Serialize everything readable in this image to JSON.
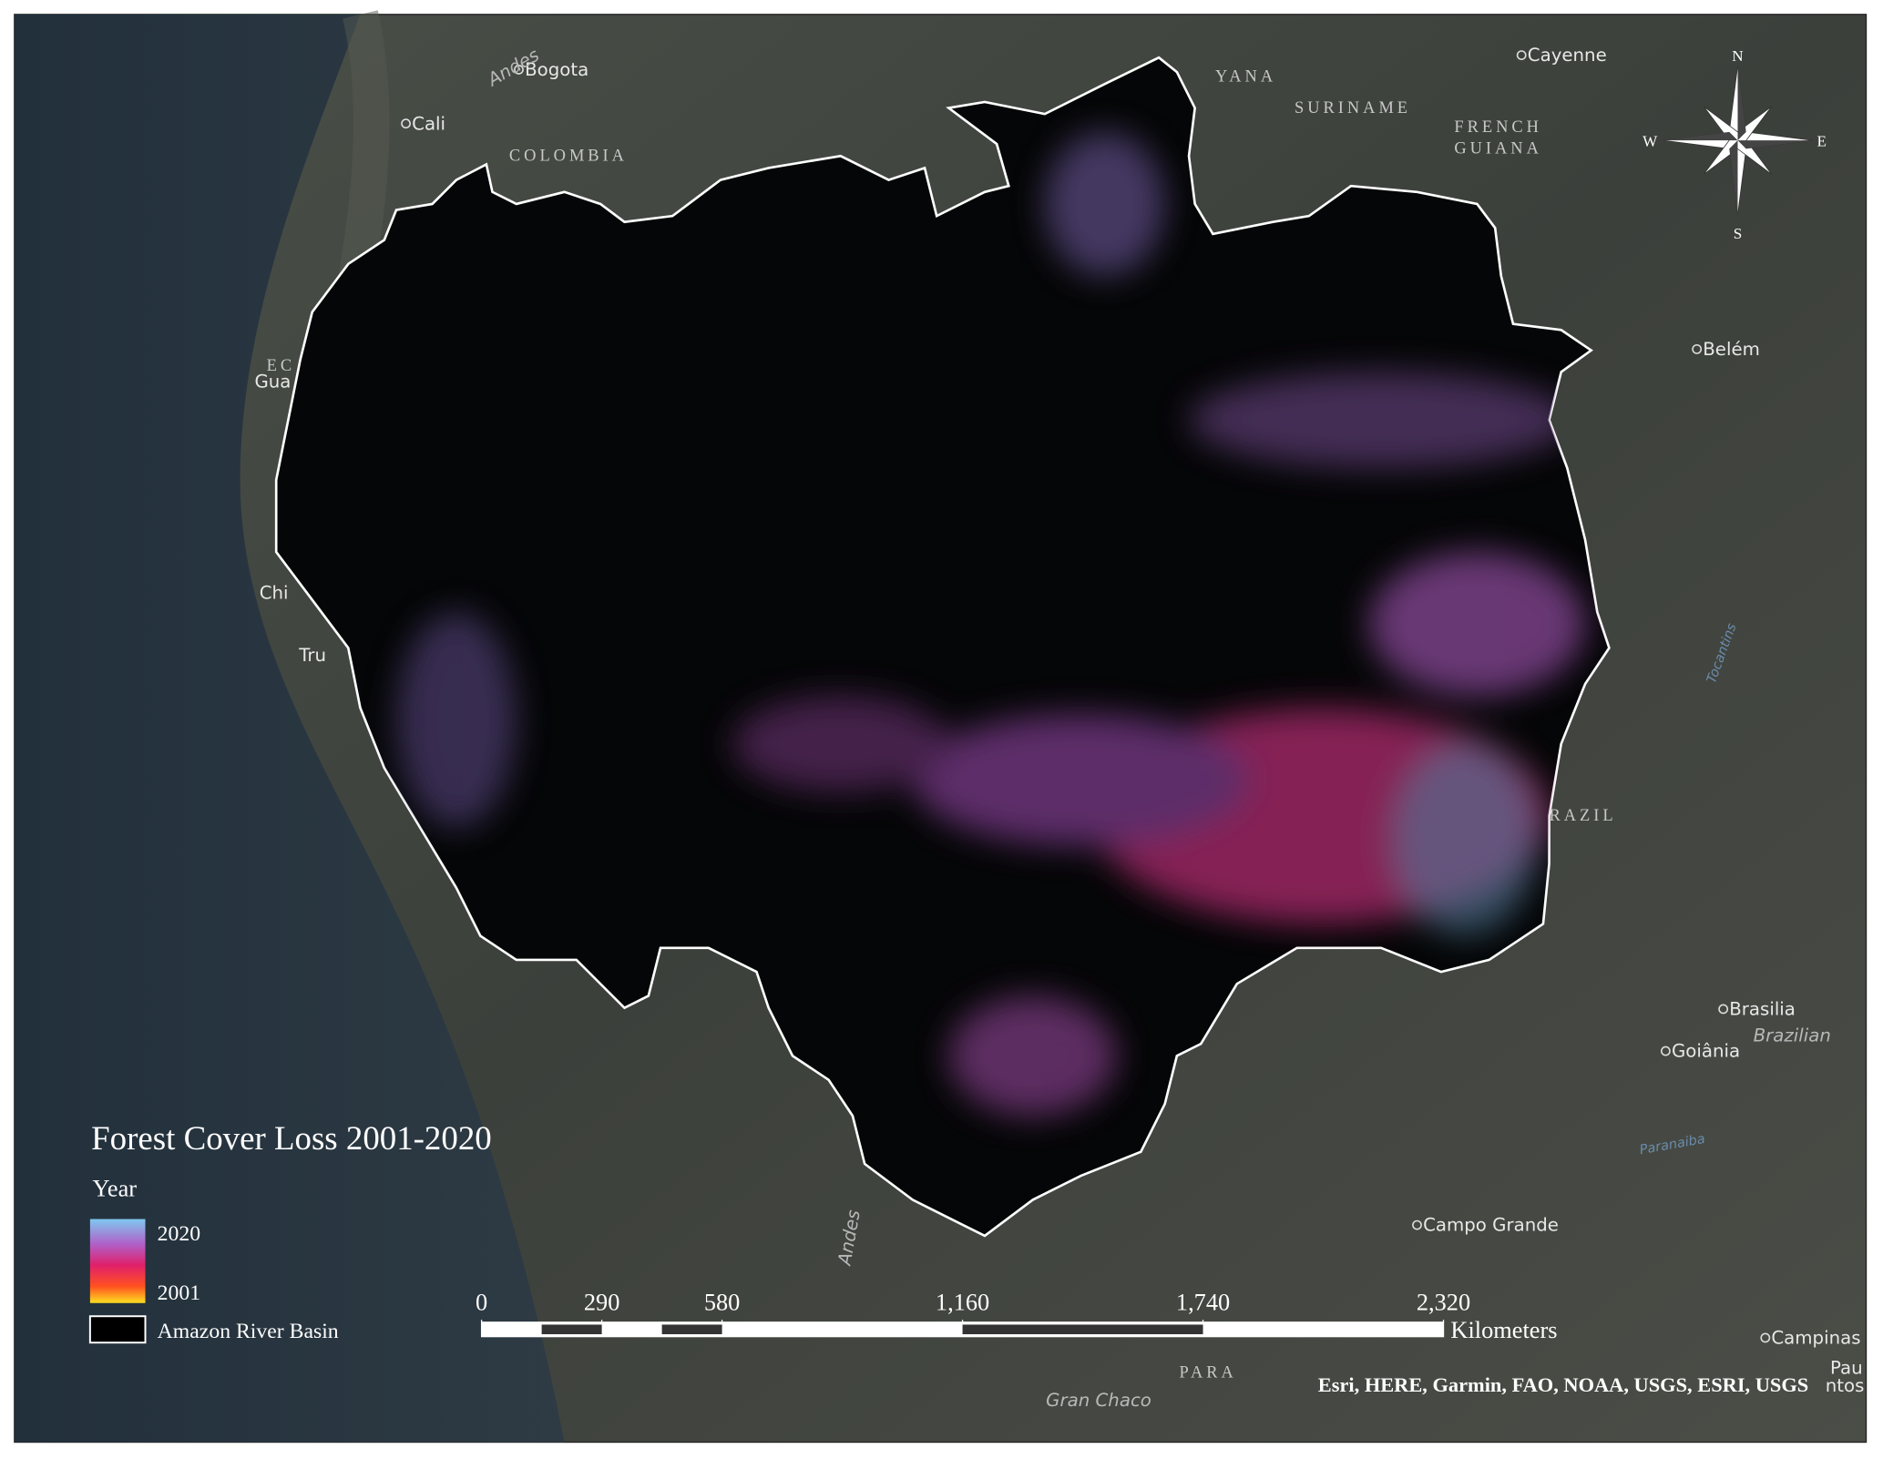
{
  "map": {
    "labels": {
      "cities": [
        "Bogota",
        "Cali",
        "Cayenne",
        "Belém",
        "Brasilia",
        "Goiânia",
        "Campo Grande",
        "Campinas",
        "Gua",
        "Chi",
        "Tru",
        "Pau",
        "ntos"
      ],
      "countries": [
        "COLOMBIA",
        "YANA",
        "SURINAME",
        "FRENCH",
        "GUIANA",
        "RAZIL",
        "PARA",
        "EC"
      ],
      "features": [
        "Andes",
        "Andes",
        "Gran Chaco",
        "Brazilian"
      ],
      "water": [
        "Tocantins",
        "Paranaiba"
      ]
    },
    "compass": {
      "n": "N",
      "e": "E",
      "s": "S",
      "w": "W"
    },
    "legend": {
      "title": "Forest Cover Loss 2001-2020",
      "subtitle": "Year",
      "high": "2020",
      "low": "2001",
      "outline": "Amazon River Basin"
    },
    "scale_bar": {
      "ticks": [
        0,
        290,
        580,
        {
          "value": 1160,
          "label": "1,160"
        },
        {
          "value": 1740,
          "label": "1,740"
        },
        {
          "value": 2320,
          "label": "2,320"
        }
      ],
      "unit": "Kilometers"
    },
    "attribution": "Esri, HERE, Garmin, FAO, NOAA, USGS, ESRI, USGS"
  }
}
